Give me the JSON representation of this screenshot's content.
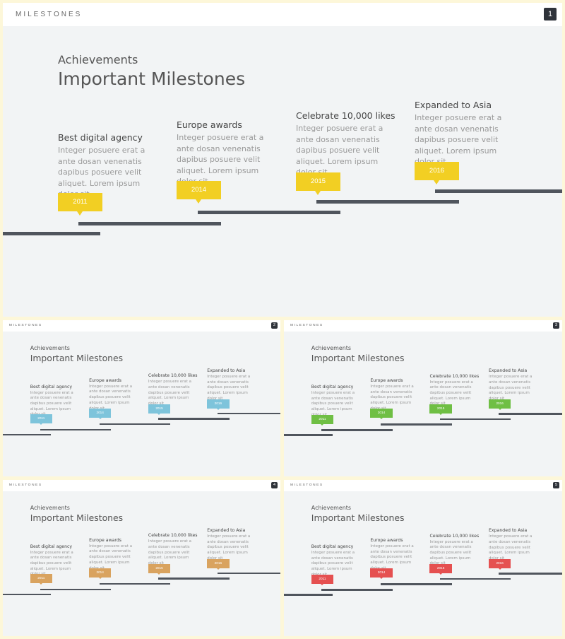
{
  "header_title": "MILESTONES",
  "subtitle": "Achievements",
  "title": "Important Milestones",
  "milestones": [
    {
      "heading": "Best digital agency",
      "body": "Integer posuere erat a ante dosan venenatis dapibus posuere velit aliquet. Lorem ipsum dolor sit",
      "year": "2011"
    },
    {
      "heading": "Europe awards",
      "body": "Integer posuere erat a ante dosan venenatis dapibus posuere velit aliquet. Lorem ipsum dolor sit",
      "year": "2014"
    },
    {
      "heading": "Celebrate 10,000 likes",
      "body": "Integer posuere erat a ante dosan venenatis dapibus posuere velit aliquet. Lorem ipsum dolor sit",
      "year": "2015"
    },
    {
      "heading": "Expanded to Asia",
      "body": "Integer posuere erat a ante dosan venenatis dapibus posuere velit aliquet. Lorem ipsum dolor sit",
      "year": "2016"
    }
  ],
  "slides": [
    {
      "page": "1",
      "accent": "#f2cf23"
    },
    {
      "page": "2",
      "accent": "#7ec4db"
    },
    {
      "page": "3",
      "accent": "#6fbf44"
    },
    {
      "page": "4",
      "accent": "#d9a35f"
    },
    {
      "page": "5",
      "accent": "#e55050"
    }
  ],
  "colors": {
    "bar": "#50555d",
    "background": "#f2f4f5",
    "frame": "#fdf7d9"
  }
}
